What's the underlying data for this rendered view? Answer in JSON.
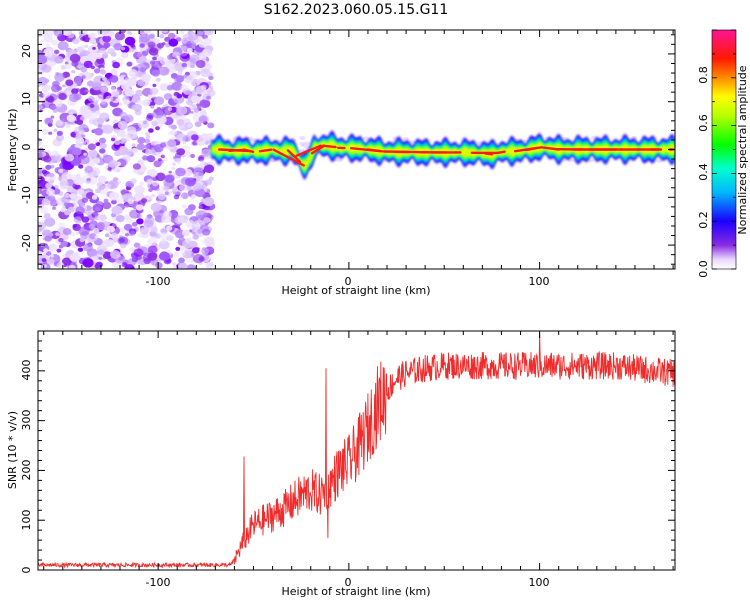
{
  "title": "S162.2023.060.05.15.G11",
  "colorbar": {
    "label": "Normalized spectral amplitude",
    "range": [
      0,
      1
    ],
    "ticks": [
      "0.0",
      "0.2",
      "0.4",
      "0.6",
      "0.8"
    ]
  },
  "chart_data": [
    {
      "type": "heatmap",
      "panel": "spectrogram",
      "xlabel": "Height of straight line (km)",
      "ylabel": "Frequency (Hz)",
      "xlim": [
        -163,
        171
      ],
      "ylim": [
        -25,
        25
      ],
      "x_ticks": [
        "-100",
        "0",
        "100"
      ],
      "y_ticks": [
        "-20",
        "-10",
        "0",
        "10",
        "20"
      ],
      "noise_region_x": [
        -163,
        -72
      ],
      "signal_start_x": -72,
      "ridge_x": [
        -72,
        -66,
        -60,
        -55,
        -50,
        -45,
        -40,
        -35,
        -30,
        -27,
        -25,
        -23,
        -20,
        -18,
        -15,
        -10,
        -5,
        0,
        10,
        20,
        30,
        40,
        50,
        60,
        70,
        75,
        80,
        90,
        95,
        100,
        105,
        110,
        120,
        130,
        140,
        150,
        160,
        171
      ],
      "ridge_y": [
        0,
        0,
        -0.5,
        0,
        -0.5,
        -0.3,
        0,
        -0.5,
        0,
        -1.5,
        -3,
        -3.5,
        -1.5,
        0.5,
        0.8,
        0.8,
        0.3,
        0.3,
        0,
        -0.5,
        -0.5,
        -0.6,
        -0.6,
        -0.6,
        -0.8,
        -1,
        -0.5,
        -0.3,
        0,
        0.5,
        0.3,
        0,
        0,
        0,
        0,
        0,
        0,
        0
      ]
    },
    {
      "type": "line",
      "panel": "snr",
      "xlabel": "Height of straight line (km)",
      "ylabel": "SNR (10 * v/v)",
      "xlim": [
        -163,
        171
      ],
      "ylim": [
        0,
        480
      ],
      "x_ticks": [
        "-100",
        "0",
        "100"
      ],
      "y_ticks": [
        "0",
        "100",
        "200",
        "300",
        "400"
      ],
      "color": "#ee2c2c",
      "trend_x": [
        -163,
        -120,
        -80,
        -62,
        -60,
        -55,
        -50,
        -45,
        -40,
        -35,
        -30,
        -25,
        -20,
        -15,
        -10,
        -5,
        0,
        5,
        10,
        15,
        20,
        25,
        30,
        40,
        50,
        60,
        80,
        100,
        120,
        140,
        160,
        171
      ],
      "trend_y": [
        10,
        10,
        10,
        10,
        20,
        60,
        90,
        100,
        110,
        120,
        135,
        150,
        160,
        150,
        170,
        200,
        215,
        245,
        285,
        330,
        360,
        385,
        395,
        405,
        410,
        410,
        410,
        410,
        410,
        410,
        400,
        395
      ],
      "spikes": [
        {
          "x": -55,
          "y": 228
        },
        {
          "x": -12,
          "y": 405
        },
        {
          "x": -11,
          "y": 64
        },
        {
          "x": 100,
          "y": 478
        }
      ]
    }
  ]
}
